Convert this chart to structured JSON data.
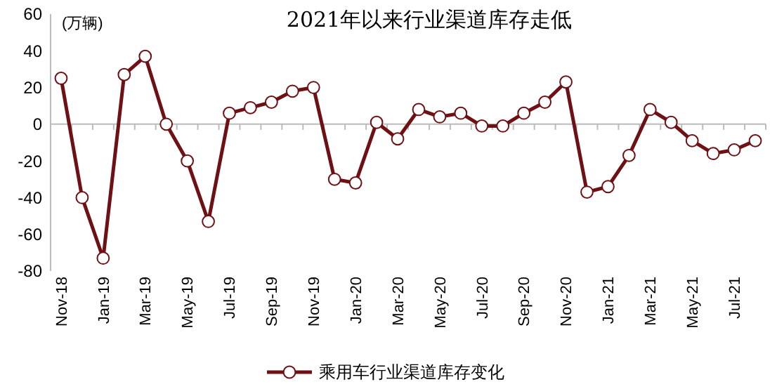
{
  "chart_data": {
    "type": "line",
    "title": "2021年以来行业渠道库存走低",
    "ylabel": "(万辆)",
    "categories": [
      "Nov-18",
      null,
      "Jan-19",
      null,
      "Mar-19",
      null,
      "May-19",
      null,
      "Jul-19",
      null,
      "Sep-19",
      null,
      "Nov-19",
      null,
      "Jan-20",
      null,
      "Mar-20",
      null,
      "May-20",
      null,
      "Jul-20",
      null,
      "Sep-20",
      null,
      "Nov-20",
      null,
      "Jan-21",
      null,
      "Mar-21",
      null,
      "May-21",
      null,
      "Jul-21",
      null
    ],
    "series": [
      {
        "name": "乘用车行业渠道库存变化",
        "color": "#6e1014",
        "values": [
          25,
          -40,
          -73,
          27,
          37,
          0,
          -20,
          -53,
          6,
          9,
          12,
          18,
          20,
          -30,
          -32,
          1,
          -8,
          8,
          4,
          6,
          -1,
          -1,
          6,
          12,
          23,
          -37,
          -34,
          -17,
          8,
          1,
          -9,
          -16,
          -14,
          -9
        ]
      }
    ],
    "ylim": [
      -80,
      60
    ],
    "yticks": [
      -80,
      -60,
      -40,
      -20,
      0,
      20,
      40,
      60
    ],
    "ref_lines": [
      {
        "axis": "y",
        "value": 0,
        "color": "#bbbbbb"
      }
    ],
    "legend": "bottom",
    "marker": "circle",
    "line_style": "solid"
  }
}
